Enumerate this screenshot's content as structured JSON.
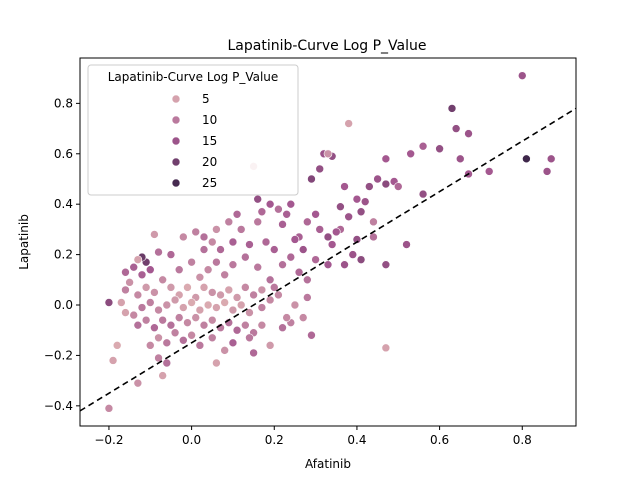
{
  "chart_data": {
    "type": "scatter",
    "title": "Lapatinib-Curve Log P_Value",
    "xlabel": "Afatinib",
    "ylabel": "Lapatinib",
    "xlim": [
      -0.27,
      0.93
    ],
    "ylim": [
      -0.48,
      0.98
    ],
    "xticks": [
      -0.2,
      0.0,
      0.2,
      0.4,
      0.6,
      0.8
    ],
    "yticks": [
      -0.4,
      -0.2,
      0.0,
      0.2,
      0.4,
      0.6,
      0.8
    ],
    "xtick_labels": [
      "−0.2",
      "0.0",
      "0.2",
      "0.4",
      "0.6",
      "0.8"
    ],
    "ytick_labels": [
      "−0.4",
      "−0.2",
      "0.0",
      "0.2",
      "0.4",
      "0.6",
      "0.8"
    ],
    "grid": false,
    "reference_line": {
      "style": "dashed",
      "color": "#000000",
      "slope": 1.0,
      "intercept": -0.15
    },
    "legend": {
      "title": "Lapatinib-Curve Log P_Value",
      "placement": "upper left",
      "entries": [
        {
          "label": "5",
          "value": 5
        },
        {
          "label": "10",
          "value": 10
        },
        {
          "label": "15",
          "value": 15
        },
        {
          "label": "20",
          "value": 20
        },
        {
          "label": "25",
          "value": 25
        }
      ]
    },
    "color_scale": {
      "min": 0,
      "max": 28,
      "low": "#f0cbbd",
      "mid": "#a45890",
      "high": "#2d1e3e"
    },
    "points": [
      [
        0.8,
        0.91,
        15
      ],
      [
        0.38,
        0.72,
        5
      ],
      [
        0.87,
        0.58,
        15
      ],
      [
        0.81,
        0.58,
        26
      ],
      [
        0.63,
        0.78,
        20
      ],
      [
        0.64,
        0.7,
        16
      ],
      [
        0.67,
        0.68,
        15
      ],
      [
        0.6,
        0.62,
        16
      ],
      [
        0.56,
        0.63,
        13
      ],
      [
        0.53,
        0.6,
        14
      ],
      [
        0.65,
        0.58,
        15
      ],
      [
        0.72,
        0.53,
        14
      ],
      [
        0.67,
        0.52,
        14
      ],
      [
        0.86,
        0.53,
        15
      ],
      [
        0.56,
        0.44,
        16
      ],
      [
        0.52,
        0.24,
        15
      ],
      [
        0.47,
        0.48,
        17
      ],
      [
        0.45,
        0.5,
        15
      ],
      [
        0.43,
        0.47,
        16
      ],
      [
        0.49,
        0.49,
        14
      ],
      [
        0.5,
        0.47,
        12
      ],
      [
        0.47,
        0.58,
        14
      ],
      [
        0.34,
        0.59,
        16
      ],
      [
        0.32,
        0.6,
        15
      ],
      [
        0.31,
        0.54,
        16
      ],
      [
        0.33,
        0.6,
        7
      ],
      [
        0.29,
        0.5,
        18
      ],
      [
        0.37,
        0.47,
        14
      ],
      [
        0.42,
        0.41,
        15
      ],
      [
        0.4,
        0.42,
        14
      ],
      [
        0.36,
        0.39,
        16
      ],
      [
        0.41,
        0.37,
        16
      ],
      [
        0.38,
        0.35,
        15
      ],
      [
        0.36,
        0.3,
        12
      ],
      [
        0.33,
        0.27,
        16
      ],
      [
        0.35,
        0.29,
        14
      ],
      [
        0.34,
        0.24,
        14
      ],
      [
        0.4,
        0.26,
        16
      ],
      [
        0.41,
        0.18,
        17
      ],
      [
        0.39,
        0.2,
        15
      ],
      [
        0.37,
        0.16,
        15
      ],
      [
        0.47,
        0.16,
        16
      ],
      [
        0.47,
        -0.17,
        5
      ],
      [
        0.44,
        0.33,
        9
      ],
      [
        0.44,
        0.27,
        11
      ],
      [
        0.28,
        0.33,
        12
      ],
      [
        0.26,
        0.27,
        13
      ],
      [
        0.3,
        0.36,
        14
      ],
      [
        0.31,
        0.3,
        13
      ],
      [
        0.27,
        0.22,
        15
      ],
      [
        0.25,
        0.26,
        14
      ],
      [
        0.22,
        0.32,
        13
      ],
      [
        0.24,
        0.4,
        14
      ],
      [
        0.23,
        0.36,
        13
      ],
      [
        0.21,
        0.38,
        11
      ],
      [
        0.19,
        0.4,
        14
      ],
      [
        0.16,
        0.42,
        16
      ],
      [
        0.17,
        0.37,
        12
      ],
      [
        0.15,
        0.55,
        4
      ],
      [
        0.16,
        0.33,
        10
      ],
      [
        0.11,
        0.36,
        12
      ],
      [
        0.09,
        0.33,
        9
      ],
      [
        0.12,
        0.3,
        10
      ],
      [
        0.06,
        0.3,
        7
      ],
      [
        0.03,
        0.27,
        11
      ],
      [
        0.01,
        0.29,
        9
      ],
      [
        -0.02,
        0.27,
        8
      ],
      [
        0.03,
        0.22,
        11
      ],
      [
        0.05,
        0.25,
        8
      ],
      [
        0.07,
        0.22,
        12
      ],
      [
        0.1,
        0.25,
        13
      ],
      [
        0.14,
        0.24,
        13
      ],
      [
        0.18,
        0.25,
        12
      ],
      [
        0.2,
        0.22,
        13
      ],
      [
        0.24,
        0.19,
        12
      ],
      [
        0.22,
        0.16,
        11
      ],
      [
        0.26,
        0.13,
        12
      ],
      [
        0.28,
        0.1,
        11
      ],
      [
        0.3,
        0.18,
        12
      ],
      [
        0.33,
        0.16,
        14
      ],
      [
        0.28,
        0.03,
        10
      ],
      [
        0.27,
        -0.05,
        8
      ],
      [
        0.24,
        -0.07,
        9
      ],
      [
        0.29,
        -0.12,
        12
      ],
      [
        0.22,
        -0.09,
        11
      ],
      [
        0.25,
        0.0,
        7
      ],
      [
        0.21,
        0.04,
        8
      ],
      [
        0.19,
        0.1,
        11
      ],
      [
        0.16,
        0.15,
        10
      ],
      [
        0.13,
        0.19,
        11
      ],
      [
        0.1,
        0.16,
        10
      ],
      [
        0.08,
        0.12,
        9
      ],
      [
        0.06,
        0.17,
        10
      ],
      [
        0.04,
        0.14,
        8
      ],
      [
        0.02,
        0.11,
        7
      ],
      [
        0.0,
        0.17,
        9
      ],
      [
        -0.03,
        0.14,
        10
      ],
      [
        -0.05,
        0.2,
        12
      ],
      [
        -0.08,
        0.21,
        11
      ],
      [
        -0.09,
        0.28,
        6
      ],
      [
        -0.11,
        0.17,
        20
      ],
      [
        -0.12,
        0.19,
        21
      ],
      [
        -0.13,
        0.18,
        5
      ],
      [
        -0.1,
        0.14,
        14
      ],
      [
        -0.12,
        0.12,
        13
      ],
      [
        -0.14,
        0.15,
        13
      ],
      [
        -0.16,
        0.13,
        12
      ],
      [
        -0.16,
        0.06,
        9
      ],
      [
        -0.15,
        0.09,
        7
      ],
      [
        -0.13,
        0.04,
        8
      ],
      [
        -0.11,
        0.07,
        6
      ],
      [
        -0.09,
        0.05,
        7
      ],
      [
        -0.07,
        0.1,
        8
      ],
      [
        -0.05,
        0.07,
        6
      ],
      [
        -0.03,
        0.04,
        5
      ],
      [
        -0.01,
        0.07,
        4
      ],
      [
        0.01,
        0.03,
        6
      ],
      [
        0.03,
        0.07,
        5
      ],
      [
        0.05,
        0.05,
        7
      ],
      [
        0.07,
        0.04,
        6
      ],
      [
        0.09,
        0.06,
        5
      ],
      [
        0.11,
        0.03,
        6
      ],
      [
        0.13,
        0.07,
        8
      ],
      [
        0.15,
        0.04,
        9
      ],
      [
        0.17,
        0.06,
        7
      ],
      [
        0.19,
        0.02,
        8
      ],
      [
        0.2,
        0.07,
        10
      ],
      [
        0.17,
        -0.01,
        9
      ],
      [
        0.14,
        -0.03,
        7
      ],
      [
        0.12,
        0.0,
        5
      ],
      [
        0.1,
        -0.02,
        6
      ],
      [
        0.08,
        0.01,
        4
      ],
      [
        0.06,
        -0.01,
        5
      ],
      [
        0.04,
        0.0,
        4
      ],
      [
        0.02,
        -0.02,
        5
      ],
      [
        0.0,
        0.01,
        4
      ],
      [
        -0.02,
        -0.01,
        5
      ],
      [
        -0.04,
        0.02,
        6
      ],
      [
        -0.06,
        0.0,
        7
      ],
      [
        -0.08,
        -0.02,
        8
      ],
      [
        -0.1,
        0.01,
        9
      ],
      [
        -0.12,
        -0.01,
        10
      ],
      [
        -0.14,
        -0.04,
        8
      ],
      [
        -0.16,
        -0.03,
        6
      ],
      [
        -0.17,
        0.01,
        5
      ],
      [
        -0.2,
        0.01,
        17
      ],
      [
        -0.13,
        -0.08,
        11
      ],
      [
        -0.11,
        -0.06,
        9
      ],
      [
        -0.09,
        -0.09,
        12
      ],
      [
        -0.07,
        -0.06,
        10
      ],
      [
        -0.05,
        -0.08,
        11
      ],
      [
        -0.03,
        -0.05,
        9
      ],
      [
        -0.01,
        -0.07,
        8
      ],
      [
        0.01,
        -0.05,
        7
      ],
      [
        0.03,
        -0.08,
        9
      ],
      [
        0.05,
        -0.06,
        8
      ],
      [
        0.07,
        -0.09,
        10
      ],
      [
        0.09,
        -0.07,
        11
      ],
      [
        0.11,
        -0.1,
        12
      ],
      [
        0.13,
        -0.08,
        9
      ],
      [
        0.15,
        -0.11,
        10
      ],
      [
        0.17,
        -0.08,
        8
      ],
      [
        0.1,
        -0.15,
        13
      ],
      [
        0.08,
        -0.18,
        7
      ],
      [
        0.05,
        -0.13,
        9
      ],
      [
        0.02,
        -0.16,
        10
      ],
      [
        0.0,
        -0.12,
        8
      ],
      [
        -0.02,
        -0.14,
        11
      ],
      [
        -0.04,
        -0.11,
        9
      ],
      [
        -0.06,
        -0.15,
        10
      ],
      [
        -0.08,
        -0.13,
        7
      ],
      [
        -0.1,
        -0.16,
        8
      ],
      [
        -0.08,
        -0.21,
        9
      ],
      [
        -0.06,
        -0.23,
        11
      ],
      [
        -0.07,
        -0.28,
        5
      ],
      [
        -0.13,
        -0.31,
        7
      ],
      [
        -0.18,
        -0.16,
        4
      ],
      [
        -0.19,
        -0.22,
        5
      ],
      [
        -0.2,
        -0.41,
        8
      ],
      [
        -0.16,
        -0.03,
        5
      ],
      [
        0.15,
        -0.19,
        12
      ],
      [
        0.06,
        -0.23,
        5
      ],
      [
        0.14,
        -0.13,
        10
      ],
      [
        0.19,
        -0.16,
        6
      ],
      [
        0.23,
        -0.05,
        8
      ]
    ]
  }
}
